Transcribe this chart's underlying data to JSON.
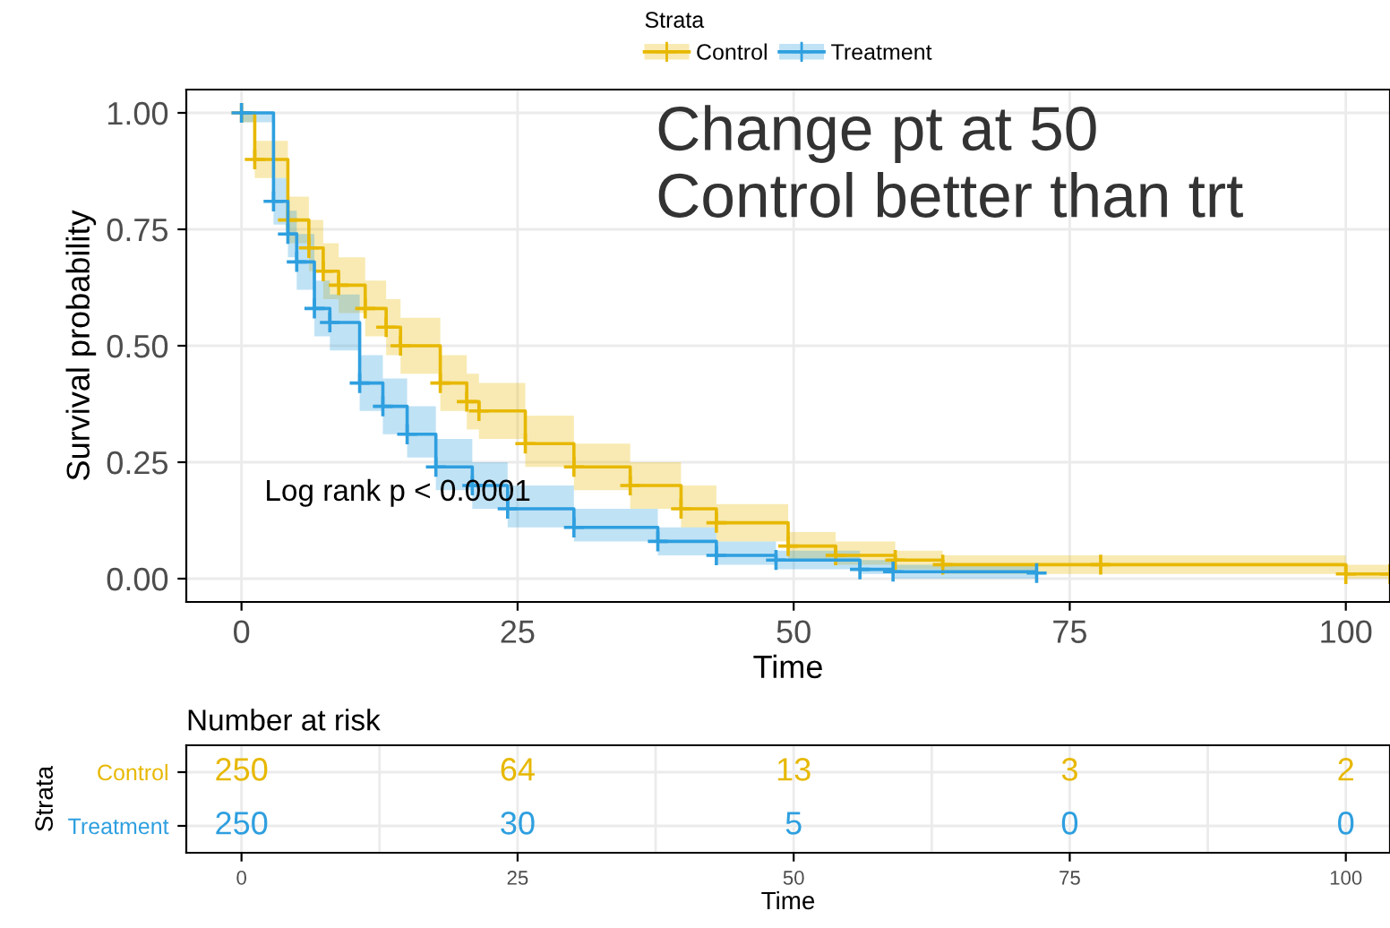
{
  "chart_data": [
    {
      "type": "step",
      "xlabel": "Time",
      "ylabel": "Survival probability",
      "legend_title": "Strata",
      "legend": "top",
      "xlim": [
        -5,
        104
      ],
      "xticks": [
        0,
        25,
        50,
        75,
        100
      ],
      "ylim": [
        -0.05,
        1.05
      ],
      "yticks": [
        {
          "value": 0,
          "label": "0.00"
        },
        {
          "value": 0.25,
          "label": "0.25"
        },
        {
          "value": 0.5,
          "label": "0.50"
        },
        {
          "value": 0.75,
          "label": "0.75"
        },
        {
          "value": 1,
          "label": "1.00"
        }
      ],
      "grid": true,
      "marker": "cross",
      "annotations": [
        "Log rank p < 0.0001",
        "Change pt at 50\nControl better than trt"
      ],
      "series": [
        {
          "name": "Control",
          "color": "#e7b800",
          "x": [
            0,
            1.2,
            4.2,
            6.1,
            7.4,
            8.8,
            11.2,
            13.1,
            14.4,
            18,
            20.4,
            21.5,
            25.7,
            30.1,
            35.2,
            39.8,
            43,
            49.5,
            53.8,
            59.2,
            63.5,
            77.8,
            100,
            104
          ],
          "values": [
            1.0,
            0.9,
            0.77,
            0.71,
            0.66,
            0.63,
            0.58,
            0.54,
            0.5,
            0.42,
            0.38,
            0.36,
            0.29,
            0.24,
            0.2,
            0.15,
            0.12,
            0.07,
            0.05,
            0.04,
            0.03,
            0.03,
            0.01,
            0.01
          ],
          "lower": [
            0.98,
            0.86,
            0.72,
            0.66,
            0.6,
            0.57,
            0.52,
            0.48,
            0.44,
            0.36,
            0.32,
            0.3,
            0.24,
            0.19,
            0.15,
            0.11,
            0.08,
            0.04,
            0.03,
            0.02,
            0.01,
            0.01,
            0.0,
            0.0
          ],
          "upper": [
            1.0,
            0.94,
            0.82,
            0.77,
            0.72,
            0.69,
            0.64,
            0.6,
            0.56,
            0.48,
            0.44,
            0.42,
            0.35,
            0.29,
            0.25,
            0.2,
            0.16,
            0.1,
            0.08,
            0.06,
            0.05,
            0.05,
            0.03,
            0.03
          ]
        },
        {
          "name": "Treatment",
          "color": "#2e9fdf",
          "x": [
            0,
            2.9,
            4.2,
            5,
            6.6,
            8,
            10.7,
            12.8,
            15,
            17.6,
            20.9,
            24.1,
            30.1,
            37.7,
            43,
            48.4,
            56,
            59,
            72
          ],
          "values": [
            1.0,
            0.81,
            0.74,
            0.68,
            0.58,
            0.55,
            0.42,
            0.37,
            0.31,
            0.24,
            0.2,
            0.15,
            0.11,
            0.08,
            0.05,
            0.04,
            0.02,
            0.015,
            0.012
          ],
          "lower": [
            0.98,
            0.76,
            0.69,
            0.62,
            0.52,
            0.49,
            0.36,
            0.31,
            0.26,
            0.19,
            0.15,
            0.11,
            0.08,
            0.05,
            0.03,
            0.02,
            0.01,
            0.0,
            0.0
          ],
          "upper": [
            1.0,
            0.86,
            0.79,
            0.74,
            0.64,
            0.61,
            0.48,
            0.43,
            0.37,
            0.3,
            0.25,
            0.2,
            0.15,
            0.11,
            0.08,
            0.06,
            0.04,
            0.03,
            0.03
          ]
        }
      ]
    },
    {
      "type": "heatmap",
      "title": "Number at risk",
      "xlabel": "Time",
      "ylabel": "Strata",
      "categories": [
        "0",
        "25",
        "50",
        "75",
        "100"
      ],
      "y_categories": [
        "Control",
        "Treatment"
      ],
      "colors": [
        "#e7b800",
        "#2e9fdf"
      ],
      "data_labels": true,
      "grid": true,
      "cells": [
        [
          250,
          64,
          13,
          3,
          2
        ],
        [
          250,
          30,
          5,
          0,
          0
        ]
      ]
    }
  ]
}
